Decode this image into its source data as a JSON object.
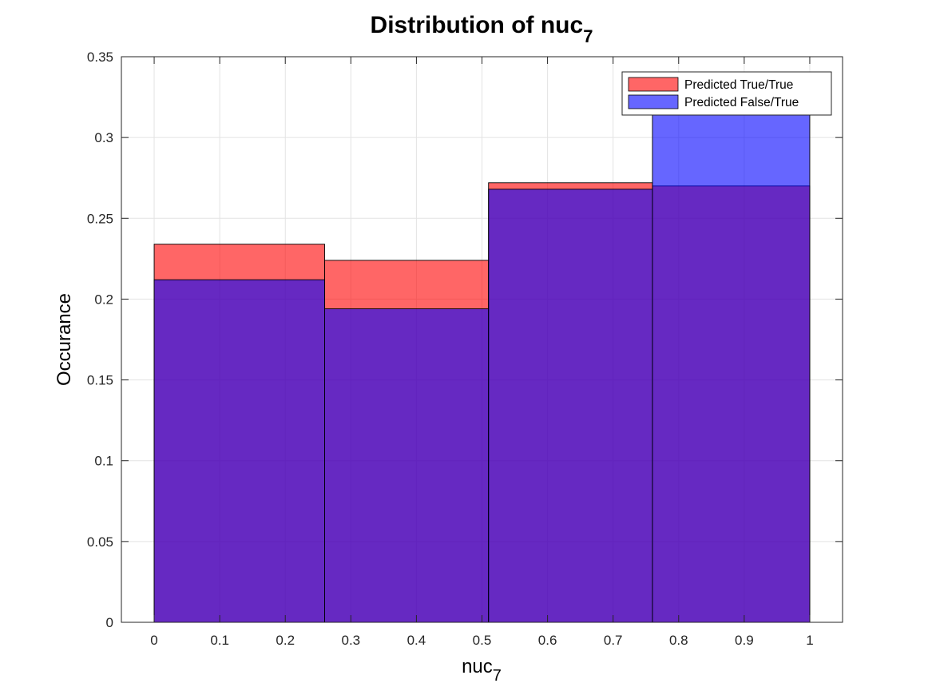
{
  "chart_data": {
    "type": "bar",
    "title": {
      "base": "Distribution of nuc",
      "sub": "7"
    },
    "xlabel": {
      "base": "nuc",
      "sub": "7"
    },
    "ylabel": "Occurance",
    "xlim": [
      -0.05,
      1.05
    ],
    "ylim": [
      0,
      0.35
    ],
    "xticks": [
      "0",
      "0.1",
      "0.2",
      "0.3",
      "0.4",
      "0.5",
      "0.6",
      "0.7",
      "0.8",
      "0.9",
      "1"
    ],
    "yticks": [
      "0",
      "0.05",
      "0.1",
      "0.15",
      "0.2",
      "0.25",
      "0.3",
      "0.35"
    ],
    "grid": true,
    "legend_position": "top-right",
    "bin_edges": [
      0,
      0.26,
      0.51,
      0.76,
      1
    ],
    "series": [
      {
        "name": "Predicted True/True",
        "color": "#ff0000",
        "values": [
          0.234,
          0.224,
          0.272,
          0.27
        ]
      },
      {
        "name": "Predicted False/True",
        "color": "#0000ff",
        "values": [
          0.212,
          0.194,
          0.268,
          0.325
        ]
      }
    ]
  }
}
